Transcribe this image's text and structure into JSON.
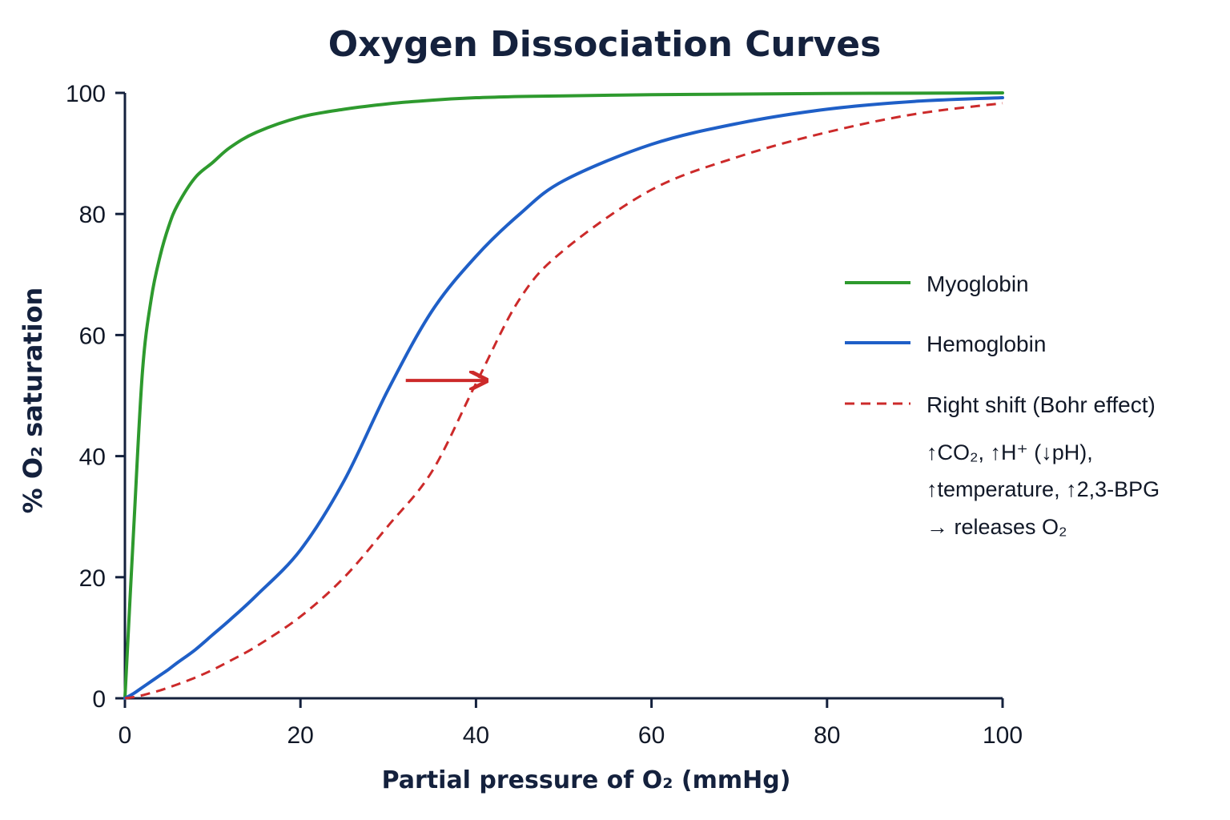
{
  "chart_data": {
    "type": "line",
    "title": "Oxygen Dissociation Curves",
    "xlabel": "Partial pressure of O₂ (mmHg)",
    "ylabel": "% O₂ saturation",
    "xlim": [
      0,
      100
    ],
    "ylim": [
      0,
      100
    ],
    "x_ticks": [
      "0",
      "20",
      "40",
      "60",
      "80",
      "100"
    ],
    "y_ticks": [
      "0",
      "20",
      "40",
      "60",
      "80",
      "100"
    ],
    "grid": false,
    "legend_position": "right",
    "x": [
      0,
      1,
      2,
      3,
      4,
      5,
      6,
      8,
      10,
      12,
      15,
      20,
      25,
      30,
      35,
      40,
      45,
      50,
      60,
      70,
      80,
      90,
      100
    ],
    "series": [
      {
        "name": "Myoglobin",
        "color": "#2e9a2e",
        "style": "solid",
        "values": [
          0,
          28,
          54,
          66,
          73,
          78,
          81.5,
          86,
          88.5,
          91,
          93.5,
          96,
          97.3,
          98.2,
          98.8,
          99.2,
          99.4,
          99.5,
          99.7,
          99.8,
          99.9,
          99.95,
          100
        ]
      },
      {
        "name": "Hemoglobin",
        "color": "#1f5fc7",
        "style": "solid",
        "values": [
          0,
          0.8,
          1.8,
          2.8,
          3.8,
          4.8,
          5.9,
          8,
          10.5,
          13,
          17,
          24.5,
          36,
          51,
          64,
          73,
          80,
          85.5,
          91.5,
          95,
          97.3,
          98.6,
          99.2
        ]
      },
      {
        "name": "Right shift (Bohr effect)",
        "color": "#cc2a2a",
        "style": "dashed",
        "values": [
          0,
          0.2,
          0.5,
          0.9,
          1.3,
          1.8,
          2.3,
          3.4,
          4.7,
          6.2,
          8.6,
          13.5,
          20,
          28.5,
          37.5,
          52,
          66,
          74,
          84,
          89.5,
          93.5,
          96.5,
          98.3
        ]
      }
    ],
    "annotations": {
      "shift_arrow": {
        "from": [
          32,
          52.5
        ],
        "to": [
          41,
          52.5
        ],
        "color": "#cc2a2a"
      },
      "note_lines": [
        "↑CO₂, ↑H⁺ (↓pH),",
        "↑temperature, ↑2,3-BPG",
        "→  releases O₂"
      ]
    }
  }
}
